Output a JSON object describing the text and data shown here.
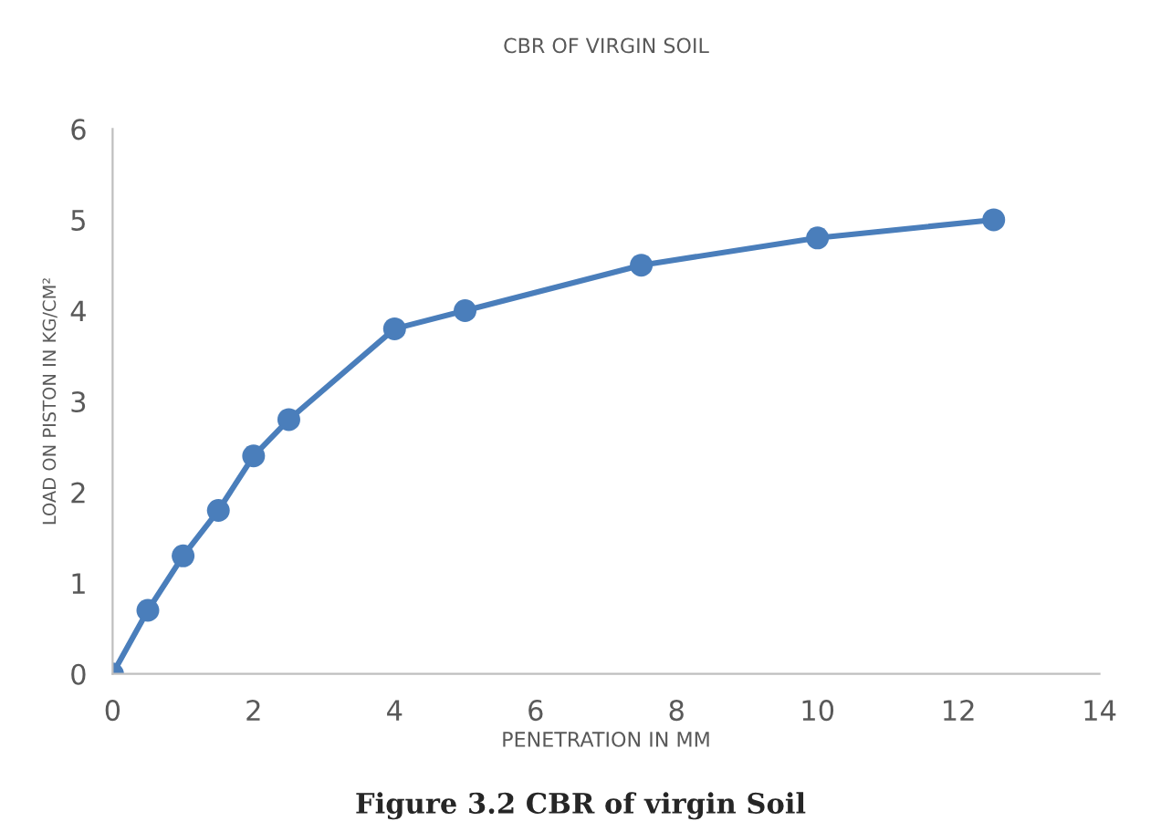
{
  "chart_data": {
    "type": "line",
    "title": "CBR OF VIRGIN SOIL",
    "xlabel": "PENETRATION IN MM",
    "ylabel": "LOAD ON PISTON IN KG/CM²",
    "x": [
      0,
      0.5,
      1,
      1.5,
      2,
      2.5,
      4,
      5,
      7.5,
      10,
      12.5
    ],
    "series": [
      {
        "color": "#4a7ebb",
        "values": [
          0,
          0.7,
          1.3,
          1.8,
          2.4,
          2.8,
          3.8,
          4.0,
          4.5,
          4.8,
          5.0
        ]
      }
    ],
    "xlim": [
      0,
      14
    ],
    "xticks": [
      0,
      2,
      4,
      6,
      8,
      10,
      12,
      14
    ],
    "ylim": [
      0,
      6
    ],
    "yticks": [
      0,
      1,
      2,
      3,
      4,
      5,
      6
    ],
    "grid": false,
    "legend": false,
    "marker": "circle",
    "line_style": "solid",
    "annotations": [
      "Figure 3.2 CBR of virgin Soil"
    ]
  }
}
